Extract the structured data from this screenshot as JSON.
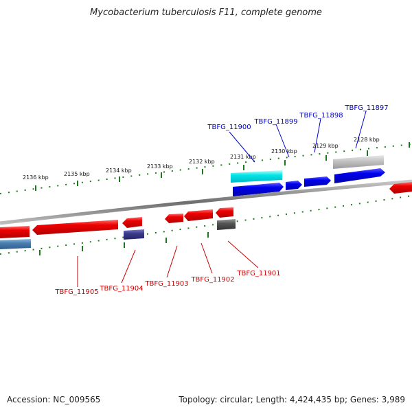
{
  "title": "Mycobacterium tuberculosis F11, complete genome",
  "footer": {
    "accession": "Accession: NC_009565",
    "summary": "Topology: circular; Length: 4,424,435 bp; Genes: 3,989"
  },
  "scale_labels": [
    "2136 kbp",
    "2135 kbp",
    "2134 kbp",
    "2133 kbp",
    "2132 kbp",
    "2131 kbp",
    "2130 kbp",
    "2129 kbp",
    "2128 kbp"
  ],
  "genes_forward": [
    "TBFG_11900",
    "TBFG_11899",
    "TBFG_11898",
    "TBFG_11897"
  ],
  "genes_reverse": [
    "TBFG_11905",
    "TBFG_11904",
    "TBFG_11903",
    "TBFG_11902",
    "TBFG_11901"
  ],
  "colors": {
    "forward_label": "#0000cc",
    "reverse_label": "#cc0000",
    "forward_gene": "#0000ee",
    "reverse_gene": "#ee0000",
    "scale_ticks": "#1a7a1a",
    "backbone": "#777777",
    "cyan_feature": "#00e5e5",
    "silver_feature": "#bdbdbd",
    "navy_feature": "#3a3a8c",
    "steel_feature": "#4a7fb0",
    "dark_gray_feature": "#555555"
  }
}
